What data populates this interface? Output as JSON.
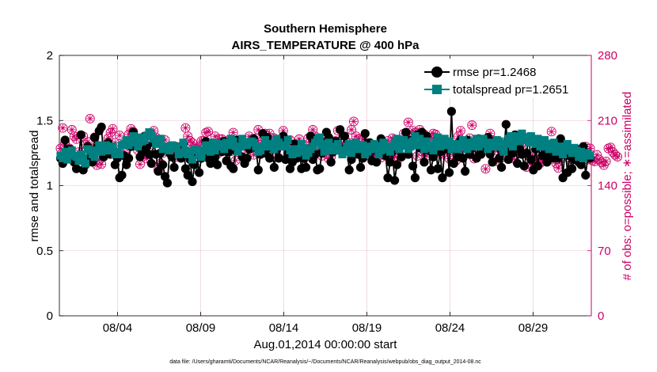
{
  "colors": {
    "rmse": "#000000",
    "spread": "#008080",
    "obs": "#CC0066",
    "grid": "#e6c3d3",
    "axis": "#000000"
  },
  "chart_data": {
    "type": "line",
    "title": "Southern Hemisphere",
    "subtitle": "AIRS_TEMPERATURE @ 400 hPa",
    "xlabel": "Aug.01,2014 00:00:00 start",
    "ylabel": "rmse and totalspread",
    "ylabel_right": "# of obs: o=possible; ∗=assimilated",
    "xlim": [
      0,
      32
    ],
    "ylim": [
      0,
      2
    ],
    "ylim_right": [
      0,
      280
    ],
    "x_ticks": [
      3.5,
      8.5,
      13.5,
      18.5,
      23.5,
      28.5
    ],
    "x_tick_labels": [
      "08/04",
      "08/09",
      "08/14",
      "08/19",
      "08/24",
      "08/29"
    ],
    "y_tick_labels": [
      "0",
      "0.5",
      "1",
      "1.5",
      "2"
    ],
    "y_right_tick_labels": [
      "0",
      "70",
      "140",
      "210",
      "280"
    ],
    "grid": true,
    "legend": {
      "location": "top-right",
      "entries": [
        "rmse pr=1.2468",
        "totalspread pr=1.2651"
      ]
    },
    "series": [
      {
        "name": "rmse pr=1.2468",
        "axis": "left",
        "marker": "filled-circle",
        "values": [
          1.21,
          1.17,
          1.35,
          1.24,
          1.28,
          1.22,
          1.18,
          1.13,
          1.21,
          1.39,
          1.12,
          1.16,
          1.3,
          1.22,
          1.18,
          1.37,
          1.29,
          1.42,
          1.45,
          1.22,
          1.27,
          1.33,
          1.24,
          1.28,
          1.16,
          1.21,
          1.06,
          1.08,
          1.23,
          1.16,
          1.21,
          1.3,
          1.41,
          1.35,
          1.3,
          1.22,
          1.26,
          1.38,
          1.3,
          1.24,
          1.17,
          1.33,
          1.24,
          1.11,
          1.25,
          1.16,
          1.07,
          1.02,
          1.25,
          1.22,
          1.14,
          1.3,
          1.24,
          1.21,
          1.32,
          1.13,
          1.08,
          1.2,
          1.03,
          1.16,
          1.25,
          1.1,
          1.21,
          1.25,
          1.34,
          1.21,
          1.17,
          1.28,
          1.22,
          1.16,
          1.3,
          1.26,
          1.34,
          1.19,
          1.26,
          1.15,
          1.13,
          1.27,
          1.35,
          1.3,
          1.22,
          1.17,
          1.21,
          1.28,
          1.3,
          1.36,
          1.29,
          1.12,
          1.24,
          1.4,
          1.25,
          1.37,
          1.21,
          1.29,
          1.14,
          1.28,
          1.21,
          1.31,
          1.38,
          1.2,
          1.24,
          1.13,
          1.18,
          1.32,
          1.21,
          1.3,
          1.13,
          1.21,
          1.14,
          1.28,
          1.38,
          1.2,
          1.24,
          1.12,
          1.13,
          1.25,
          1.33,
          1.41,
          1.37,
          1.18,
          1.26,
          1.34,
          1.29,
          1.43,
          1.25,
          1.38,
          1.3,
          1.12,
          1.2,
          1.27,
          1.32,
          1.24,
          1.14,
          1.21,
          1.4,
          1.25,
          1.33,
          1.19,
          1.28,
          1.18,
          1.26,
          1.36,
          1.3,
          1.23,
          1.06,
          1.18,
          1.26,
          1.04,
          1.16,
          1.3,
          1.22,
          1.33,
          1.41,
          1.24,
          1.35,
          1.15,
          1.06,
          1.39,
          1.29,
          1.41,
          1.18,
          1.38,
          1.27,
          1.12,
          1.22,
          1.29,
          1.13,
          1.26,
          1.06,
          1.28,
          1.32,
          1.1,
          1.57,
          1.17,
          1.28,
          1.22,
          1.35,
          1.21,
          1.11,
          1.35,
          1.24,
          1.29,
          1.32,
          1.21,
          1.36,
          1.24,
          1.29,
          1.29,
          1.37,
          1.24,
          1.18,
          1.34,
          1.3,
          1.21,
          1.14,
          1.27,
          1.47,
          1.2,
          1.29,
          1.25,
          1.39,
          1.17,
          1.28,
          1.24,
          1.15,
          1.25,
          1.37,
          1.2,
          1.12,
          1.28,
          1.15,
          1.32,
          1.23,
          1.3,
          1.18,
          1.24,
          1.32,
          1.21,
          1.24,
          1.21,
          1.36,
          1.06,
          1.3,
          1.1,
          1.23,
          1.13,
          1.2,
          1.28,
          1.18,
          1.16,
          1.3,
          1.08,
          1.23,
          1.21
        ]
      },
      {
        "name": "totalspread pr=1.2651",
        "axis": "left",
        "marker": "filled-square",
        "values": [
          1.23,
          1.21,
          1.26,
          1.2,
          1.24,
          1.27,
          1.23,
          1.22,
          1.19,
          1.24,
          1.21,
          1.17,
          1.28,
          1.27,
          1.24,
          1.22,
          1.27,
          1.31,
          1.26,
          1.27,
          1.31,
          1.27,
          1.28,
          1.3,
          1.24,
          1.26,
          1.24,
          1.31,
          1.32,
          1.35,
          1.31,
          1.34,
          1.38,
          1.33,
          1.3,
          1.37,
          1.34,
          1.35,
          1.38,
          1.41,
          1.38,
          1.36,
          1.32,
          1.34,
          1.36,
          1.28,
          1.3,
          1.3,
          1.27,
          1.31,
          1.29,
          1.3,
          1.24,
          1.25,
          1.33,
          1.27,
          1.24,
          1.26,
          1.2,
          1.28,
          1.27,
          1.24,
          1.22,
          1.27,
          1.31,
          1.28,
          1.26,
          1.33,
          1.27,
          1.3,
          1.32,
          1.31,
          1.28,
          1.33,
          1.31,
          1.36,
          1.34,
          1.3,
          1.26,
          1.3,
          1.36,
          1.33,
          1.31,
          1.33,
          1.34,
          1.33,
          1.3,
          1.26,
          1.27,
          1.3,
          1.35,
          1.3,
          1.31,
          1.32,
          1.28,
          1.36,
          1.33,
          1.3,
          1.31,
          1.3,
          1.35,
          1.27,
          1.24,
          1.28,
          1.25,
          1.26,
          1.32,
          1.29,
          1.23,
          1.25,
          1.28,
          1.3,
          1.33,
          1.35,
          1.37,
          1.31,
          1.26,
          1.32,
          1.33,
          1.27,
          1.3,
          1.27,
          1.32,
          1.27,
          1.24,
          1.26,
          1.3,
          1.32,
          1.25,
          1.28,
          1.33,
          1.29,
          1.28,
          1.31,
          1.24,
          1.26,
          1.3,
          1.28,
          1.32,
          1.3,
          1.24,
          1.27,
          1.33,
          1.3,
          1.28,
          1.26,
          1.3,
          1.33,
          1.36,
          1.28,
          1.31,
          1.35,
          1.33,
          1.28,
          1.3,
          1.34,
          1.38,
          1.31,
          1.36,
          1.32,
          1.28,
          1.34,
          1.29,
          1.31,
          1.27,
          1.33,
          1.37,
          1.3,
          1.34,
          1.36,
          1.31,
          1.34,
          1.28,
          1.3,
          1.32,
          1.28,
          1.31,
          1.35,
          1.32,
          1.28,
          1.33,
          1.3,
          1.34,
          1.36,
          1.3,
          1.32,
          1.36,
          1.33,
          1.28,
          1.31,
          1.33,
          1.3,
          1.35,
          1.34,
          1.3,
          1.26,
          1.32,
          1.36,
          1.38,
          1.3,
          1.36,
          1.38,
          1.34,
          1.4,
          1.37,
          1.35,
          1.33,
          1.38,
          1.34,
          1.32,
          1.36,
          1.3,
          1.34,
          1.35,
          1.3,
          1.28,
          1.32,
          1.33,
          1.26,
          1.3,
          1.28,
          1.24,
          1.3,
          1.32,
          1.27,
          1.25,
          1.29,
          1.27,
          1.22,
          1.26,
          1.21,
          1.24,
          1.25,
          1.23
        ]
      },
      {
        "name": "possible",
        "axis": "right",
        "marker": "open-circle",
        "values": [
          180,
          202,
          186,
          170,
          180,
          200,
          193,
          190,
          176,
          173,
          193,
          184,
          187,
          212,
          180,
          192,
          162,
          168,
          163,
          174,
          184,
          191,
          197,
          201,
          186,
          174,
          194,
          174,
          175,
          171,
          195,
          201,
          198,
          186,
          178,
          163,
          171,
          174,
          169,
          182,
          188,
          199,
          192,
          157,
          164,
          175,
          189,
          180,
          180,
          178,
          170,
          177,
          174,
          180,
          173,
          202,
          193,
          188,
          186,
          180,
          180,
          182,
          188,
          188,
          197,
          198,
          182,
          175,
          193,
          174,
          190,
          190,
          186,
          177,
          189,
          177,
          197,
          167,
          187,
          178,
          187,
          185,
          171,
          193,
          180,
          173,
          191,
          200,
          184,
          189,
          196,
          187,
          196,
          186,
          191,
          178,
          170,
          184,
          199,
          182,
          176,
          189,
          184,
          174,
          175,
          190,
          181,
          178,
          171,
          191,
          187,
          200,
          193,
          178,
          179,
          172,
          187,
          175,
          169,
          171,
          177,
          188,
          199,
          181,
          179,
          182,
          186,
          186,
          200,
          209,
          193,
          190,
          180,
          190,
          172,
          176,
          175,
          172,
          170,
          174,
          172,
          170,
          177,
          178,
          188,
          174,
          191,
          171,
          166,
          174,
          183,
          196,
          197,
          208,
          184,
          199,
          197,
          172,
          200,
          177,
          195,
          172,
          186,
          192,
          196,
          195,
          190,
          175,
          174,
          178,
          186,
          169,
          178,
          179,
          167,
          193,
          199,
          185,
          181,
          176,
          191,
          205,
          169,
          172,
          187,
          185,
          183,
          158,
          183,
          196,
          189,
          181,
          166,
          176,
          170,
          176,
          180,
          190,
          186,
          169,
          173,
          179,
          183,
          178,
          192,
          160,
          172,
          164,
          172,
          167,
          167,
          164,
          166,
          180,
          176,
          170,
          198,
          172,
          164,
          159,
          169,
          174,
          176,
          175,
          168,
          171,
          177,
          173,
          174,
          179,
          178,
          182,
          168,
          180,
          167,
          166,
          173,
          168,
          165,
          162,
          166,
          180,
          181,
          176,
          173,
          171
        ]
      }
    ]
  },
  "footer_text": "data file: /Users/gharamti/Documents/NCAR/Reanalysis/~/Documents/NCAR/Reanalysis/webpub/obs_diag_output_2014-08.nc"
}
